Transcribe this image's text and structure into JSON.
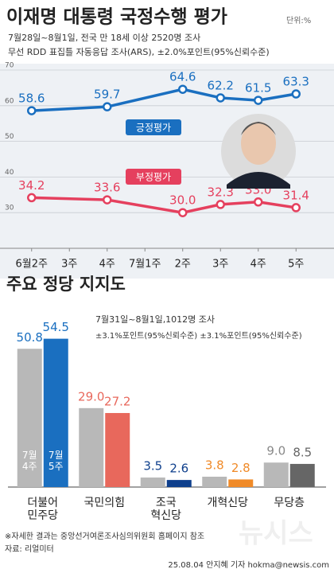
{
  "chart_data": [
    {
      "type": "line",
      "title": "이재명 대통령 국정수행 평가",
      "unit": "단위:%",
      "subtitle": [
        "7월28일~8월1일, 전국 만 18세 이상 2520명 조사",
        "무선 RDD 표집틀 자동응답 조사(ARS), ±2.0%포인트(95%신뢰수준)"
      ],
      "categories": [
        "6월2주",
        "3주",
        "4주",
        "7월1주",
        "2주",
        "3주",
        "4주",
        "5주"
      ],
      "series": [
        {
          "name": "긍정평가",
          "color": "#1a6fc0",
          "values": [
            58.6,
            null,
            59.7,
            null,
            64.6,
            62.2,
            61.5,
            63.3
          ]
        },
        {
          "name": "부정평가",
          "color": "#e5405e",
          "values": [
            34.2,
            null,
            33.6,
            null,
            30.0,
            32.3,
            33.0,
            31.4
          ],
          "value_labels": [
            "34.2",
            null,
            "33.6",
            null,
            "30.0",
            "32.3",
            "33.0",
            "31.4"
          ]
        }
      ],
      "ylim": [
        20,
        70
      ],
      "yticks": [
        30,
        40,
        50,
        60,
        70
      ],
      "grid": true
    },
    {
      "type": "bar",
      "title": "주요 정당 지지도",
      "subtitle": [
        "7월31일~8월1일,1012명 조사",
        "±3.1%포인트(95%신뢰수준) ±3.1%포인트(95%신뢰수준)"
      ],
      "categories": [
        "더불어\n민주당",
        "국민의힘",
        "조국\n혁신당",
        "개혁신당",
        "무당층"
      ],
      "colors": [
        "#1a6fc0",
        "#e8685c",
        "#0e3f8c",
        "#f08a28",
        "#666666"
      ],
      "series": [
        {
          "name": "7월\n4주",
          "color": "#b8b8b8",
          "values": [
            50.8,
            29.0,
            3.5,
            3.8,
            9.0
          ],
          "value_labels": [
            "50.8",
            "29.0",
            "3.5",
            "3.8",
            "9.0"
          ]
        },
        {
          "name": "7월\n5주",
          "values": [
            54.5,
            27.2,
            2.6,
            2.8,
            8.5
          ]
        }
      ]
    }
  ],
  "footer": {
    "note": "※자세한 결과는 중앙선거여론조사심의위원회 홈페이지 참조",
    "source": "자료: 리얼미터",
    "credit": "25.08.04 안지혜 기자 hokma@newsis.com",
    "watermark": "뉴시스"
  }
}
